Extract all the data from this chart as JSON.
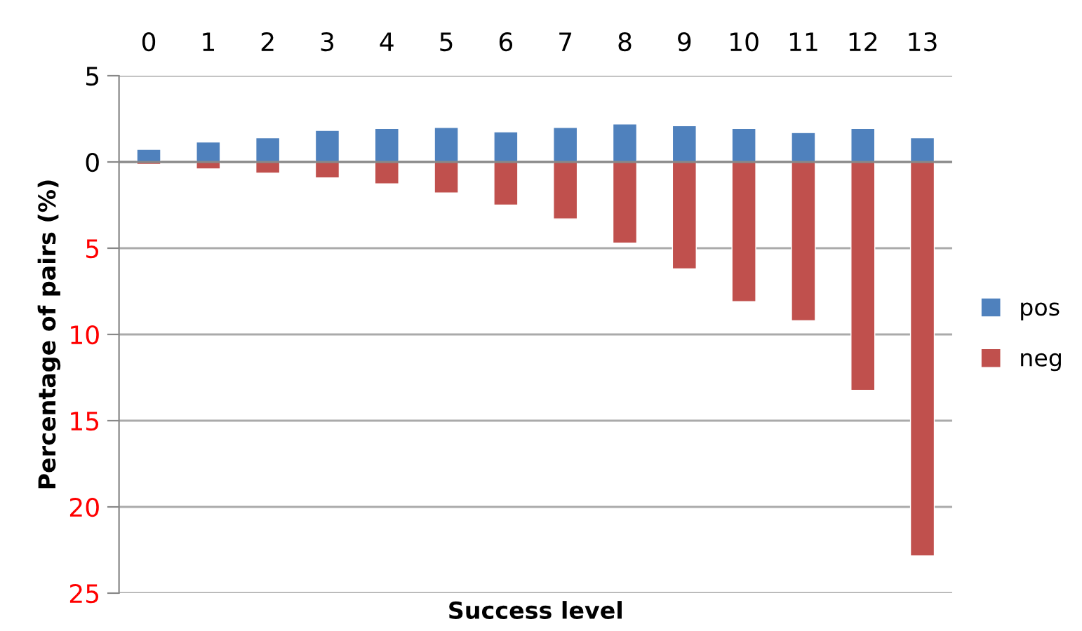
{
  "chart_data": {
    "type": "bar",
    "xlabel": "Success level",
    "ylabel": "Percentage of pairs (%)",
    "categories": [
      "0",
      "1",
      "2",
      "3",
      "4",
      "5",
      "6",
      "7",
      "8",
      "9",
      "10",
      "11",
      "12",
      "13"
    ],
    "series": [
      {
        "name": "pos",
        "color": "#4f81bd",
        "values": [
          0.73,
          1.16,
          1.4,
          1.83,
          1.94,
          2.0,
          1.75,
          2.0,
          2.2,
          2.1,
          1.94,
          1.7,
          1.94,
          1.4
        ]
      },
      {
        "name": "neg",
        "color": "#c0504d",
        "values": [
          -0.14,
          -0.4,
          -0.65,
          -0.92,
          -1.27,
          -1.8,
          -2.5,
          -3.3,
          -4.7,
          -6.2,
          -8.1,
          -9.2,
          -13.24,
          -22.84
        ]
      }
    ],
    "stacked": true,
    "ylim": [
      -25,
      5
    ],
    "yticks": [
      5,
      0,
      {
        "value": -5,
        "label": "5"
      },
      {
        "value": -10,
        "label": "10"
      },
      {
        "value": -15,
        "label": "15"
      },
      {
        "value": -20,
        "label": "20"
      },
      {
        "value": -25,
        "label": "25"
      }
    ],
    "grid": "y",
    "legend": "right"
  }
}
